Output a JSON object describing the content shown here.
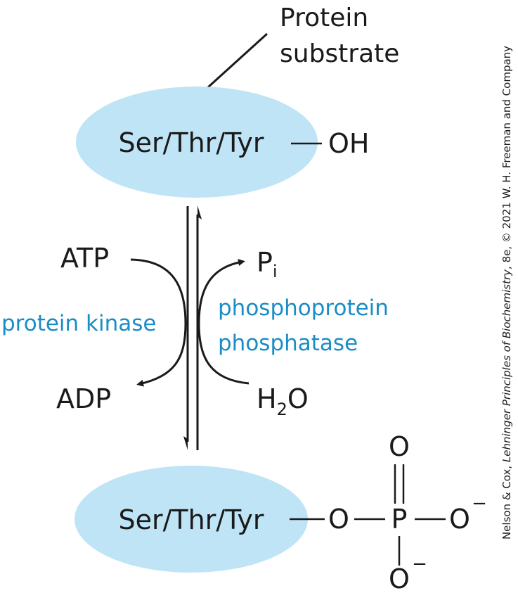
{
  "substrate_label": {
    "line1": "Protein",
    "line2": "substrate"
  },
  "top_molecule": {
    "residue": "Ser/Thr/Tyr",
    "group": "OH"
  },
  "kinase": {
    "name": "protein kinase",
    "input": "ATP",
    "output": "ADP"
  },
  "phosphatase": {
    "line1": "phosphoprotein",
    "line2": "phosphatase",
    "output_main": "P",
    "output_sub": "i",
    "input_main": "H",
    "input_sub": "2",
    "input_tail": "O"
  },
  "bottom_molecule": {
    "residue": "Ser/Thr/Tyr",
    "o_bridge": "O",
    "p": "P",
    "o_double": "O",
    "o_right": "O",
    "o_right_charge": "−",
    "o_bottom": "O",
    "o_bottom_charge": "−"
  },
  "credit": {
    "prefix": "Nelson & Cox, ",
    "title": "Lehninger Principles of Biochemistry",
    "suffix": ", 8e, © 2021 W. H. Freeman and Company"
  },
  "colors": {
    "ellipse": "#bfe4f6",
    "enzyme_text": "#1a8cc7"
  }
}
